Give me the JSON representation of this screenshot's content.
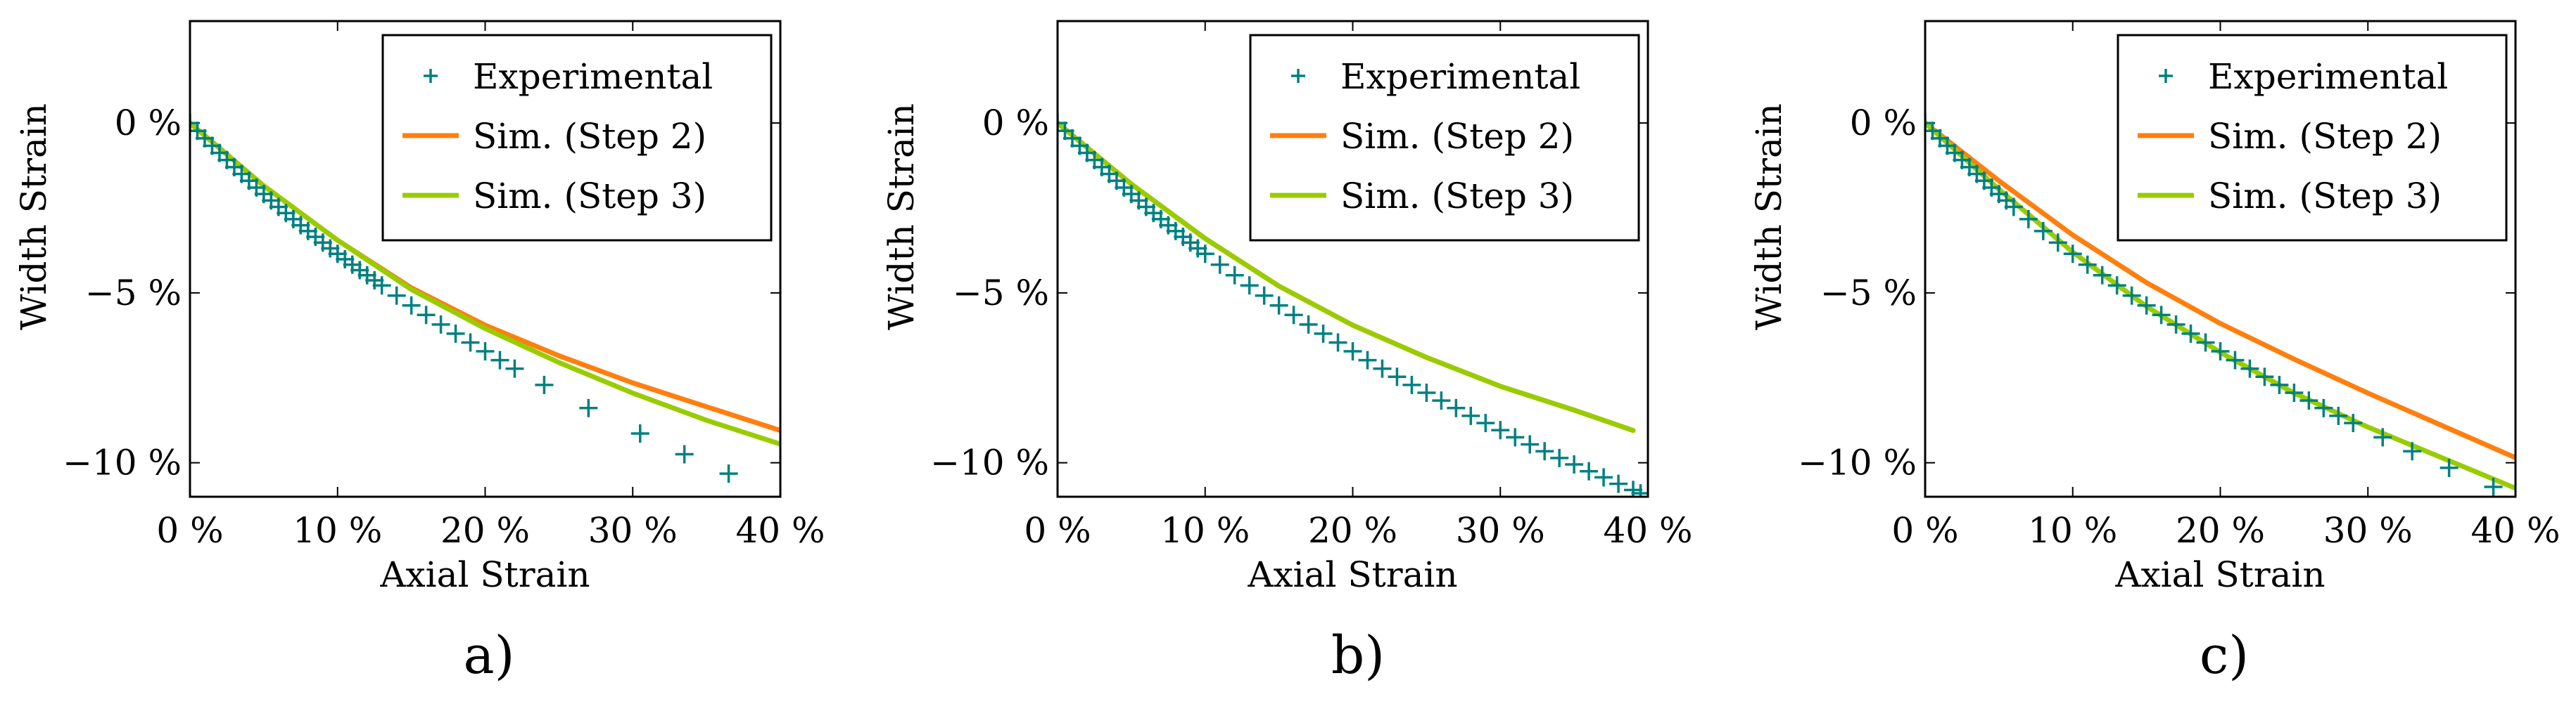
{
  "chart_data": [
    {
      "type": "line",
      "panel_label": "a)",
      "xlabel": "Axial Strain",
      "ylabel": "Width Strain",
      "xlim": [
        0,
        40
      ],
      "ylim": [
        -11,
        3
      ],
      "x_ticks": [
        0,
        10,
        20,
        30,
        40
      ],
      "x_tick_labels": [
        "0 %",
        "10 %",
        "20 %",
        "30 %",
        "40 %"
      ],
      "y_ticks": [
        0,
        -5,
        -10
      ],
      "y_tick_labels": [
        "0 %",
        "−5 %",
        "−10 %"
      ],
      "legend_position": "top-right",
      "series": [
        {
          "name": "Experimental",
          "kind": "scatter",
          "marker": "+",
          "color": "#008080",
          "x": [
            0,
            0.5,
            1,
            1.5,
            2,
            2.5,
            3,
            3.5,
            4,
            4.5,
            5,
            5.5,
            6,
            6.5,
            7,
            7.5,
            8,
            8.5,
            9,
            9.5,
            10,
            10.5,
            11,
            11.5,
            12,
            12.5,
            13,
            14,
            15,
            16,
            17,
            18,
            19,
            20,
            21,
            22,
            24,
            27,
            30.5,
            33.5,
            36.5
          ],
          "y": [
            0,
            -0.23,
            -0.45,
            -0.67,
            -0.88,
            -1.09,
            -1.3,
            -1.5,
            -1.7,
            -1.9,
            -2.09,
            -2.28,
            -2.47,
            -2.65,
            -2.83,
            -3.01,
            -3.18,
            -3.35,
            -3.52,
            -3.69,
            -3.85,
            -4.01,
            -4.17,
            -4.33,
            -4.48,
            -4.63,
            -4.78,
            -5.08,
            -5.37,
            -5.65,
            -5.93,
            -6.2,
            -6.46,
            -6.72,
            -6.98,
            -7.23,
            -7.71,
            -8.39,
            -9.14,
            -9.75,
            -10.32
          ]
        },
        {
          "name": "Sim. (Step 2)",
          "kind": "line",
          "color": "#ff7f0e",
          "x": [
            0,
            5,
            10,
            15,
            20,
            25,
            30,
            35,
            40
          ],
          "y": [
            0,
            -1.85,
            -3.45,
            -4.85,
            -5.95,
            -6.85,
            -7.65,
            -8.35,
            -9.05
          ]
        },
        {
          "name": "Sim. (Step 3)",
          "kind": "line",
          "color": "#99cc00",
          "x": [
            0,
            5,
            10,
            15,
            20,
            25,
            30,
            35,
            40
          ],
          "y": [
            0,
            -1.85,
            -3.45,
            -4.9,
            -6.05,
            -7.05,
            -7.95,
            -8.75,
            -9.45
          ]
        }
      ]
    },
    {
      "type": "line",
      "panel_label": "b)",
      "xlabel": "Axial Strain",
      "ylabel": "Width Strain",
      "xlim": [
        0,
        40
      ],
      "ylim": [
        -11,
        3
      ],
      "x_ticks": [
        0,
        10,
        20,
        30,
        40
      ],
      "x_tick_labels": [
        "0 %",
        "10 %",
        "20 %",
        "30 %",
        "40 %"
      ],
      "y_ticks": [
        0,
        -5,
        -10
      ],
      "y_tick_labels": [
        "0 %",
        "−5 %",
        "−10 %"
      ],
      "legend_position": "top-right",
      "series": [
        {
          "name": "Experimental",
          "kind": "scatter",
          "marker": "+",
          "color": "#008080",
          "x": [
            0,
            0.5,
            1,
            1.5,
            2,
            2.5,
            3,
            3.5,
            4,
            4.5,
            5,
            5.5,
            6,
            6.5,
            7,
            7.5,
            8,
            8.5,
            9,
            9.5,
            10,
            11,
            12,
            13,
            14,
            15,
            16,
            17,
            18,
            19,
            20,
            21,
            22,
            23,
            24,
            25,
            26,
            27,
            28,
            29,
            30,
            31,
            32,
            33,
            34,
            35,
            36,
            37,
            38,
            39,
            39.5
          ],
          "y": [
            0,
            -0.23,
            -0.45,
            -0.67,
            -0.88,
            -1.09,
            -1.3,
            -1.5,
            -1.7,
            -1.9,
            -2.09,
            -2.28,
            -2.47,
            -2.65,
            -2.83,
            -3.01,
            -3.18,
            -3.35,
            -3.52,
            -3.69,
            -3.85,
            -4.17,
            -4.48,
            -4.78,
            -5.08,
            -5.37,
            -5.65,
            -5.93,
            -6.2,
            -6.46,
            -6.72,
            -6.98,
            -7.23,
            -7.47,
            -7.71,
            -7.94,
            -8.17,
            -8.39,
            -8.62,
            -8.83,
            -9.04,
            -9.25,
            -9.46,
            -9.66,
            -9.86,
            -10.05,
            -10.25,
            -10.43,
            -10.62,
            -10.8,
            -10.9
          ]
        },
        {
          "name": "Sim. (Step 2)",
          "kind": "line",
          "color": "#ff7f0e",
          "x": [
            0,
            5,
            10,
            15,
            20,
            25,
            30,
            35,
            39
          ],
          "y": [
            0,
            -1.8,
            -3.4,
            -4.8,
            -5.95,
            -6.9,
            -7.75,
            -8.45,
            -9.05
          ]
        },
        {
          "name": "Sim. (Step 3)",
          "kind": "line",
          "color": "#99cc00",
          "x": [
            0,
            5,
            10,
            15,
            20,
            25,
            30,
            35,
            39
          ],
          "y": [
            0,
            -1.8,
            -3.4,
            -4.8,
            -5.95,
            -6.9,
            -7.75,
            -8.45,
            -9.05
          ]
        }
      ]
    },
    {
      "type": "line",
      "panel_label": "c)",
      "xlabel": "Axial Strain",
      "ylabel": "Width Strain",
      "xlim": [
        0,
        40
      ],
      "ylim": [
        -11,
        3
      ],
      "x_ticks": [
        0,
        10,
        20,
        30,
        40
      ],
      "x_tick_labels": [
        "0 %",
        "10 %",
        "20 %",
        "30 %",
        "40 %"
      ],
      "y_ticks": [
        0,
        -5,
        -10
      ],
      "y_tick_labels": [
        "0 %",
        "−5 %",
        "−10 %"
      ],
      "legend_position": "top-right",
      "series": [
        {
          "name": "Experimental",
          "kind": "scatter",
          "marker": "+",
          "color": "#008080",
          "x": [
            0,
            0.5,
            1,
            1.5,
            2,
            2.5,
            3,
            3.5,
            4,
            4.5,
            5,
            5.5,
            6,
            7,
            8,
            9,
            10,
            11,
            12,
            13,
            14,
            15,
            16,
            17,
            18,
            19,
            20,
            21,
            22,
            23,
            24,
            25,
            26,
            27,
            28,
            29,
            31,
            33,
            35.5,
            38.5
          ],
          "y": [
            0,
            -0.23,
            -0.45,
            -0.67,
            -0.88,
            -1.09,
            -1.3,
            -1.5,
            -1.7,
            -1.9,
            -2.09,
            -2.28,
            -2.47,
            -2.83,
            -3.18,
            -3.52,
            -3.85,
            -4.17,
            -4.48,
            -4.78,
            -5.08,
            -5.37,
            -5.65,
            -5.93,
            -6.2,
            -6.46,
            -6.72,
            -6.98,
            -7.23,
            -7.47,
            -7.71,
            -7.94,
            -8.17,
            -8.39,
            -8.62,
            -8.83,
            -9.25,
            -9.66,
            -10.15,
            -10.71
          ]
        },
        {
          "name": "Sim. (Step 2)",
          "kind": "line",
          "color": "#ff7f0e",
          "x": [
            0,
            5,
            10,
            15,
            20,
            25,
            30,
            35,
            40
          ],
          "y": [
            0,
            -1.7,
            -3.3,
            -4.7,
            -5.9,
            -6.95,
            -7.95,
            -8.9,
            -9.85
          ]
        },
        {
          "name": "Sim. (Step 3)",
          "kind": "line",
          "color": "#99cc00",
          "x": [
            0,
            5,
            10,
            15,
            20,
            25,
            30,
            35,
            40
          ],
          "y": [
            0,
            -1.95,
            -3.8,
            -5.4,
            -6.75,
            -7.95,
            -8.95,
            -9.85,
            -10.75
          ]
        }
      ]
    }
  ]
}
